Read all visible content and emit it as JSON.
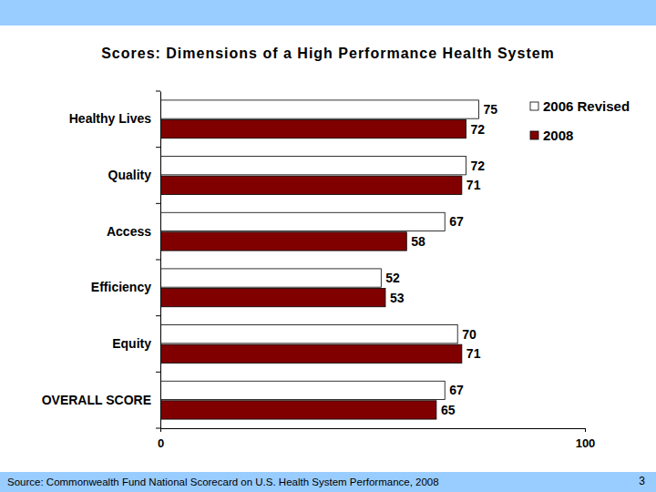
{
  "chart_data": {
    "type": "bar",
    "orientation": "horizontal",
    "title": "Scores: Dimensions of a High Performance Health System",
    "categories": [
      "Healthy Lives",
      "Quality",
      "Access",
      "Efficiency",
      "Equity",
      "OVERALL SCORE"
    ],
    "series": [
      {
        "name": "2006 Revised",
        "color": "#ffffff",
        "values": [
          75,
          72,
          67,
          52,
          70,
          67
        ]
      },
      {
        "name": "2008",
        "color": "#800000",
        "values": [
          72,
          71,
          58,
          53,
          71,
          65
        ]
      }
    ],
    "xlim": [
      0,
      100
    ],
    "xticks": [
      0,
      100
    ],
    "data_labels": true,
    "legend": "top right",
    "annotations": [
      "Source: Commonwealth Fund National Scorecard on U.S. Health System Performance, 2008",
      "3"
    ]
  }
}
